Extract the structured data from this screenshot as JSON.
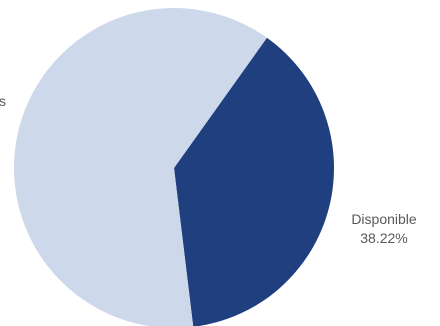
{
  "chart_data": {
    "type": "pie",
    "title": "",
    "start_angle_deg": 35.5,
    "direction": "clockwise",
    "slices": [
      {
        "name": "Disponible",
        "value": 38.22,
        "value_label": "38.22%",
        "color": "#1f3f7e"
      },
      {
        "name": "",
        "value": 61.78,
        "value_label": "",
        "color": "#cdd8ea"
      }
    ],
    "edge_label_fragment": "s"
  }
}
